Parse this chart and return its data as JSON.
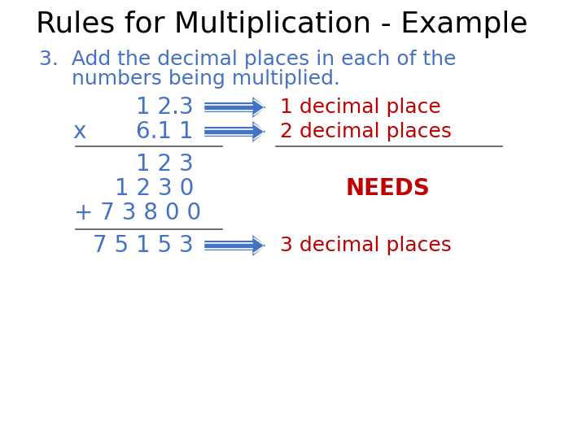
{
  "title": "Rules for Multiplication - Example",
  "title_color": "#000000",
  "title_fontsize": 26,
  "bg_color": "#ffffff",
  "step_line1": "3.  Add the decimal places in each of the",
  "step_line2": "     numbers being multiplied.",
  "step_color": "#4472c4",
  "step_fontsize": 18,
  "num1": "1 2.3",
  "num2": "6.1 1",
  "x_label": "x",
  "partial1": "1 2 3",
  "partial2": "1 2 3 0",
  "partial3": "+ 7 3 8 0 0",
  "result": "7 5 1 5 3",
  "num_color": "#4472c4",
  "num_fontsize": 20,
  "arrow_color": "#4472c4",
  "label1": "1 decimal place",
  "label2": "2 decimal places",
  "label3": "3 decimal places",
  "label_color": "#c00000",
  "label_fontsize": 18,
  "needs_text": "NEEDS",
  "needs_color": "#c00000",
  "needs_fontsize": 20,
  "line_color": "#555555"
}
